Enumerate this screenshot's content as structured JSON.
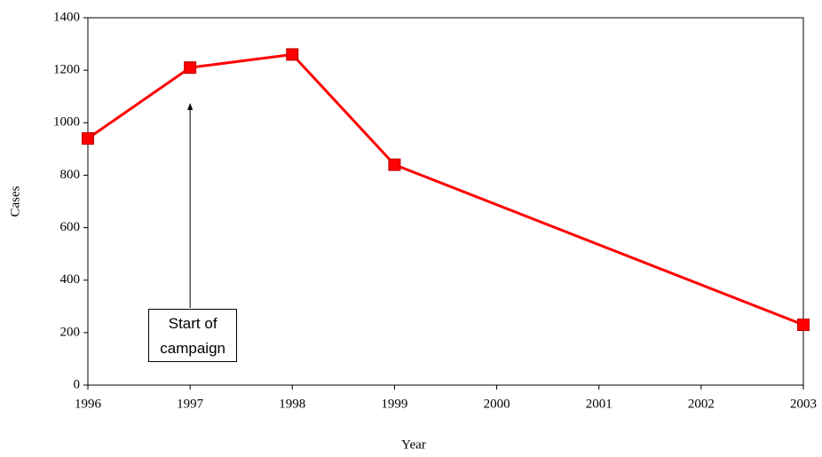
{
  "chart_data": {
    "type": "line",
    "x": [
      1996,
      1997,
      1998,
      1999,
      2003
    ],
    "values": [
      940,
      1210,
      1260,
      840,
      230
    ],
    "color": "#ff0000",
    "xlabel": "Year",
    "ylabel": "Cases",
    "xlim": [
      1996,
      2003
    ],
    "xticks": [
      1996,
      1997,
      1998,
      1999,
      2000,
      2001,
      2002,
      2003
    ],
    "ylim": [
      0,
      1400
    ],
    "yticks": [
      0,
      200,
      400,
      600,
      800,
      1000,
      1200,
      1400
    ],
    "grid": false,
    "annotation": {
      "text": "Start of campaign",
      "x": 1997
    }
  }
}
